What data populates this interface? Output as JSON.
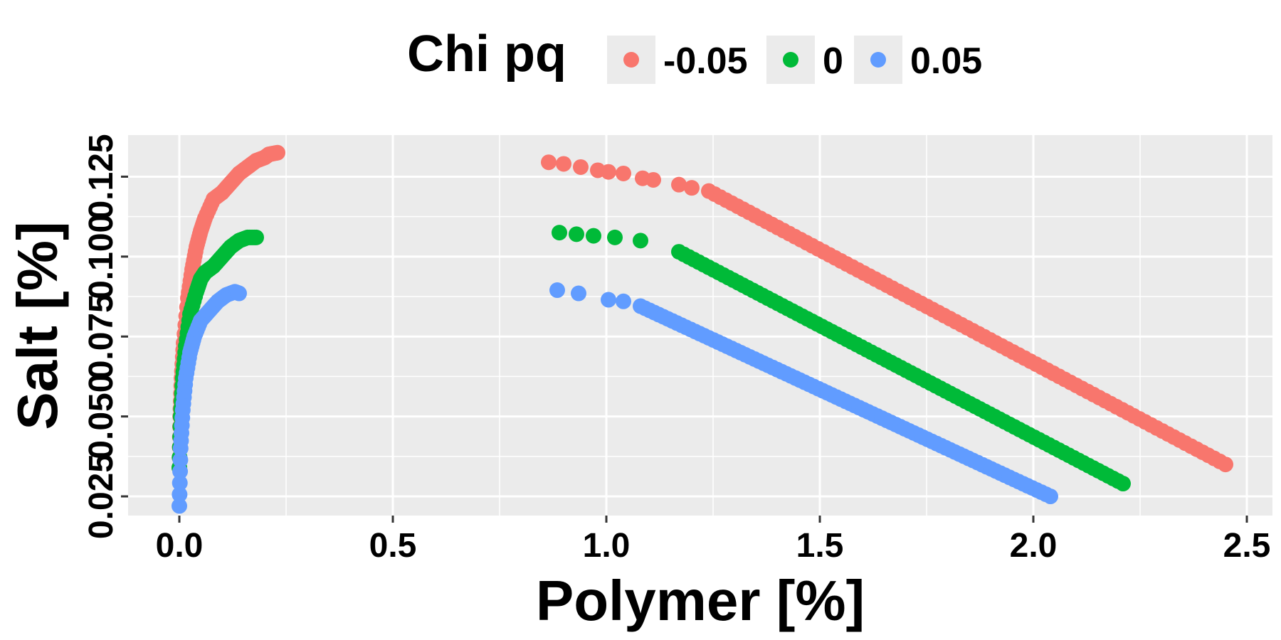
{
  "chart_data": {
    "type": "scatter",
    "title": "",
    "xlabel": "Polymer [%]",
    "ylabel": "Salt [%]",
    "xlim": [
      -0.12,
      2.56
    ],
    "ylim": [
      0.019,
      0.138
    ],
    "x_ticks": [
      0.0,
      0.5,
      1.0,
      1.5,
      2.0,
      2.5
    ],
    "x_tick_labels": [
      "0.0",
      "0.5",
      "1.0",
      "1.5",
      "2.0",
      "2.5"
    ],
    "y_ticks": [
      0.025,
      0.05,
      0.075,
      0.1,
      0.125
    ],
    "y_tick_labels": [
      "0.025",
      "0.050",
      "0.075",
      "0.100",
      "0.125"
    ],
    "grid": true,
    "legend": {
      "title": "Chi pq",
      "position": "top",
      "entries": [
        {
          "label": "-0.05",
          "color": "#F8766D"
        },
        {
          "label": "0",
          "color": "#00BA38"
        },
        {
          "label": "0.05",
          "color": "#619CFF"
        }
      ]
    },
    "series": [
      {
        "name": "-0.05",
        "color": "#F8766D",
        "left_branch": [
          [
            0.0,
            0.034
          ],
          [
            0.002,
            0.05
          ],
          [
            0.005,
            0.062
          ],
          [
            0.01,
            0.073
          ],
          [
            0.02,
            0.087
          ],
          [
            0.03,
            0.096
          ],
          [
            0.04,
            0.103
          ],
          [
            0.05,
            0.108
          ],
          [
            0.06,
            0.112
          ],
          [
            0.08,
            0.118
          ],
          [
            0.1,
            0.12
          ],
          [
            0.12,
            0.123
          ],
          [
            0.14,
            0.126
          ],
          [
            0.16,
            0.128
          ],
          [
            0.18,
            0.13
          ],
          [
            0.2,
            0.131
          ],
          [
            0.21,
            0.132
          ],
          [
            0.23,
            0.1325
          ]
        ],
        "right_isolated": [
          [
            0.865,
            0.1295
          ],
          [
            0.9,
            0.129
          ],
          [
            0.94,
            0.128
          ],
          [
            0.98,
            0.127
          ],
          [
            1.005,
            0.1265
          ],
          [
            1.04,
            0.126
          ],
          [
            1.085,
            0.1245
          ],
          [
            1.11,
            0.124
          ],
          [
            1.17,
            0.1225
          ],
          [
            1.2,
            0.1215
          ]
        ],
        "right_line": {
          "x_start": 1.24,
          "y_start": 0.1205,
          "x_end": 2.45,
          "y_end": 0.035
        }
      },
      {
        "name": "0",
        "color": "#00BA38",
        "left_branch": [
          [
            0.0,
            0.034
          ],
          [
            0.003,
            0.05
          ],
          [
            0.008,
            0.062
          ],
          [
            0.015,
            0.072
          ],
          [
            0.025,
            0.082
          ],
          [
            0.04,
            0.089
          ],
          [
            0.05,
            0.093
          ],
          [
            0.06,
            0.095
          ],
          [
            0.08,
            0.097
          ],
          [
            0.1,
            0.1
          ],
          [
            0.12,
            0.103
          ],
          [
            0.14,
            0.105
          ],
          [
            0.16,
            0.106
          ],
          [
            0.18,
            0.106
          ]
        ],
        "right_isolated": [
          [
            0.89,
            0.1075
          ],
          [
            0.93,
            0.107
          ],
          [
            0.97,
            0.1065
          ],
          [
            1.02,
            0.106
          ],
          [
            1.08,
            0.105
          ]
        ],
        "right_line": {
          "x_start": 1.17,
          "y_start": 0.1015,
          "x_end": 2.21,
          "y_end": 0.029
        }
      },
      {
        "name": "0.05",
        "color": "#619CFF",
        "left_branch": [
          [
            0.0,
            0.022
          ],
          [
            0.003,
            0.04
          ],
          [
            0.008,
            0.052
          ],
          [
            0.015,
            0.062
          ],
          [
            0.025,
            0.07
          ],
          [
            0.035,
            0.075
          ],
          [
            0.05,
            0.08
          ],
          [
            0.07,
            0.083
          ],
          [
            0.09,
            0.086
          ],
          [
            0.11,
            0.088
          ],
          [
            0.13,
            0.089
          ],
          [
            0.14,
            0.0885
          ]
        ],
        "right_isolated": [
          [
            0.885,
            0.0895
          ],
          [
            0.935,
            0.0885
          ],
          [
            1.005,
            0.0865
          ],
          [
            1.04,
            0.086
          ]
        ],
        "right_line": {
          "x_start": 1.08,
          "y_start": 0.0845,
          "x_end": 2.04,
          "y_end": 0.025
        }
      }
    ]
  }
}
